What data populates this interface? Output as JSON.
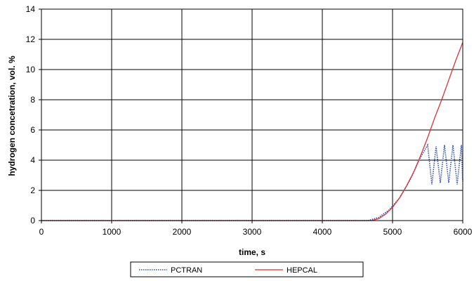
{
  "chart_data": {
    "type": "line",
    "xlabel": "time, s",
    "ylabel": "hydrogen concetration, vol. %",
    "xlim": [
      0,
      6000
    ],
    "ylim": [
      0,
      14
    ],
    "x_ticks": [
      0,
      1000,
      2000,
      3000,
      4000,
      5000,
      6000
    ],
    "y_ticks": [
      0,
      2,
      4,
      6,
      8,
      10,
      12,
      14
    ],
    "grid": true,
    "legend_position": "bottom-center",
    "series": [
      {
        "name": "PCTRAN",
        "color": "#2b4fbf",
        "style": "dotted",
        "x": [
          0,
          4650,
          4800,
          4950,
          5100,
          5250,
          5400,
          5500,
          5560,
          5620,
          5680,
          5740,
          5800,
          5860,
          5920,
          5980,
          6000
        ],
        "y": [
          0,
          0,
          0.2,
          0.7,
          1.5,
          2.7,
          4.2,
          5.0,
          2.4,
          4.9,
          2.5,
          5.0,
          2.5,
          5.0,
          2.4,
          5.0,
          2.6
        ]
      },
      {
        "name": "HEPCAL",
        "color": "#e03030",
        "style": "solid",
        "x": [
          0,
          4700,
          4800,
          4900,
          5000,
          5100,
          5200,
          5300,
          5400,
          5500,
          5600,
          5700,
          5800,
          5900,
          6000
        ],
        "y": [
          0,
          0,
          0.12,
          0.42,
          0.88,
          1.5,
          2.3,
          3.2,
          4.3,
          5.5,
          6.8,
          8.0,
          9.3,
          10.6,
          11.8
        ]
      }
    ]
  }
}
